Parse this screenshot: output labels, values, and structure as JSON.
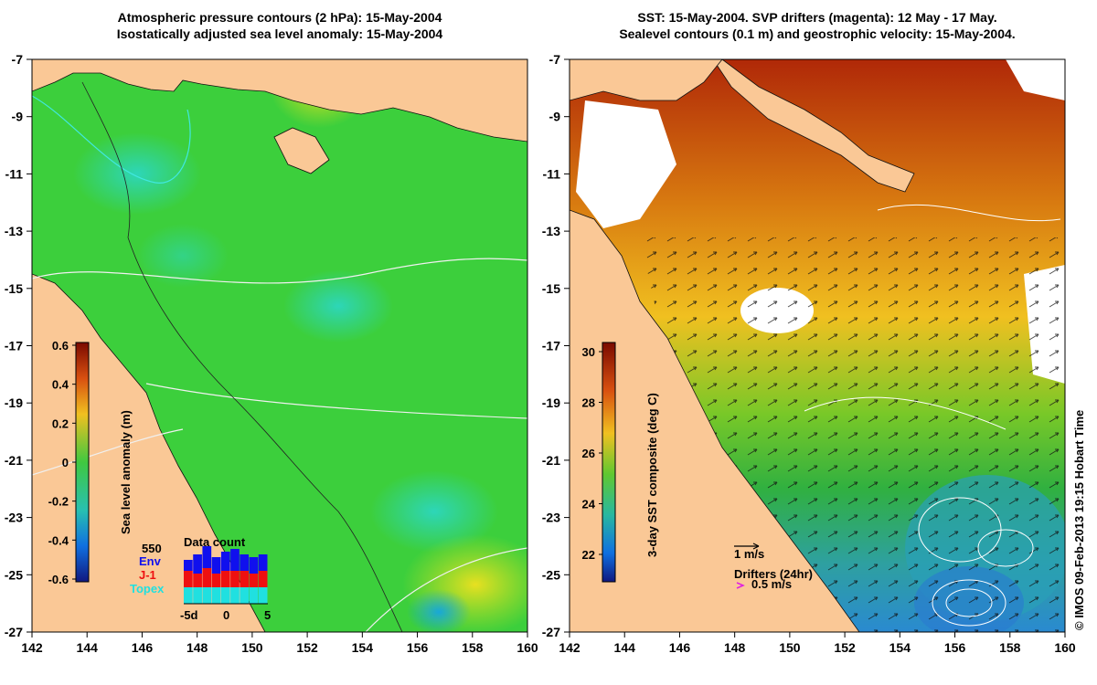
{
  "left_panel": {
    "title_line1": "Atmospheric pressure contours (2 hPa): 15-May-2004",
    "title_line2": "Isostatically adjusted sea level anomaly: 15-May-2004",
    "colorbar": {
      "label": "Sea level anomaly (m)",
      "ticks": [
        "0.6",
        "0.4",
        "0.2",
        "0",
        "-0.2",
        "-0.4",
        "-0.6"
      ]
    },
    "data_count": {
      "title": "Data count",
      "max_label": "550",
      "series": [
        {
          "name": "Env",
          "color": "#1010ee"
        },
        {
          "name": "J-1",
          "color": "#ee1010"
        },
        {
          "name": "Topex",
          "color": "#20e0e0"
        }
      ],
      "x_ticks": [
        "-5d",
        "0",
        "5"
      ],
      "topex": [
        0.3,
        0.3,
        0.3,
        0.3,
        0.3,
        0.3,
        0.3,
        0.3,
        0.3
      ],
      "j1": [
        0.3,
        0.25,
        0.35,
        0.25,
        0.3,
        0.3,
        0.3,
        0.25,
        0.3
      ],
      "env": [
        0.2,
        0.35,
        0.4,
        0.3,
        0.35,
        0.4,
        0.3,
        0.3,
        0.3
      ]
    }
  },
  "right_panel": {
    "title_line1": "SST: 15-May-2004. SVP drifters (magenta): 12 May - 17 May.",
    "title_line2": "Sealevel contours (0.1 m) and geostrophic velocity: 15-May-2004.",
    "colorbar": {
      "label": "3-day SST composite (deg C)",
      "ticks": [
        "30",
        "28",
        "26",
        "24",
        "22"
      ]
    },
    "scale_label": "1 m/s",
    "drifters_label": "Drifters (24hr)",
    "drifters_speed": "0.5 m/s"
  },
  "axes": {
    "x_ticks": [
      "142",
      "144",
      "146",
      "148",
      "150",
      "152",
      "154",
      "156",
      "158",
      "160"
    ],
    "y_ticks": [
      "-7",
      "-9",
      "-11",
      "-13",
      "-15",
      "-17",
      "-19",
      "-21",
      "-23",
      "-25",
      "-27"
    ]
  },
  "credit": "© IMOS 09-Feb-2013 19:15 Hobart Time",
  "colors": {
    "land": "#fac896",
    "ocean_left": "#3ccf3c",
    "sst_warm": "#cc4a0a",
    "sst_mid": "#f0b020",
    "sst_cool": "#2c9e9e"
  }
}
